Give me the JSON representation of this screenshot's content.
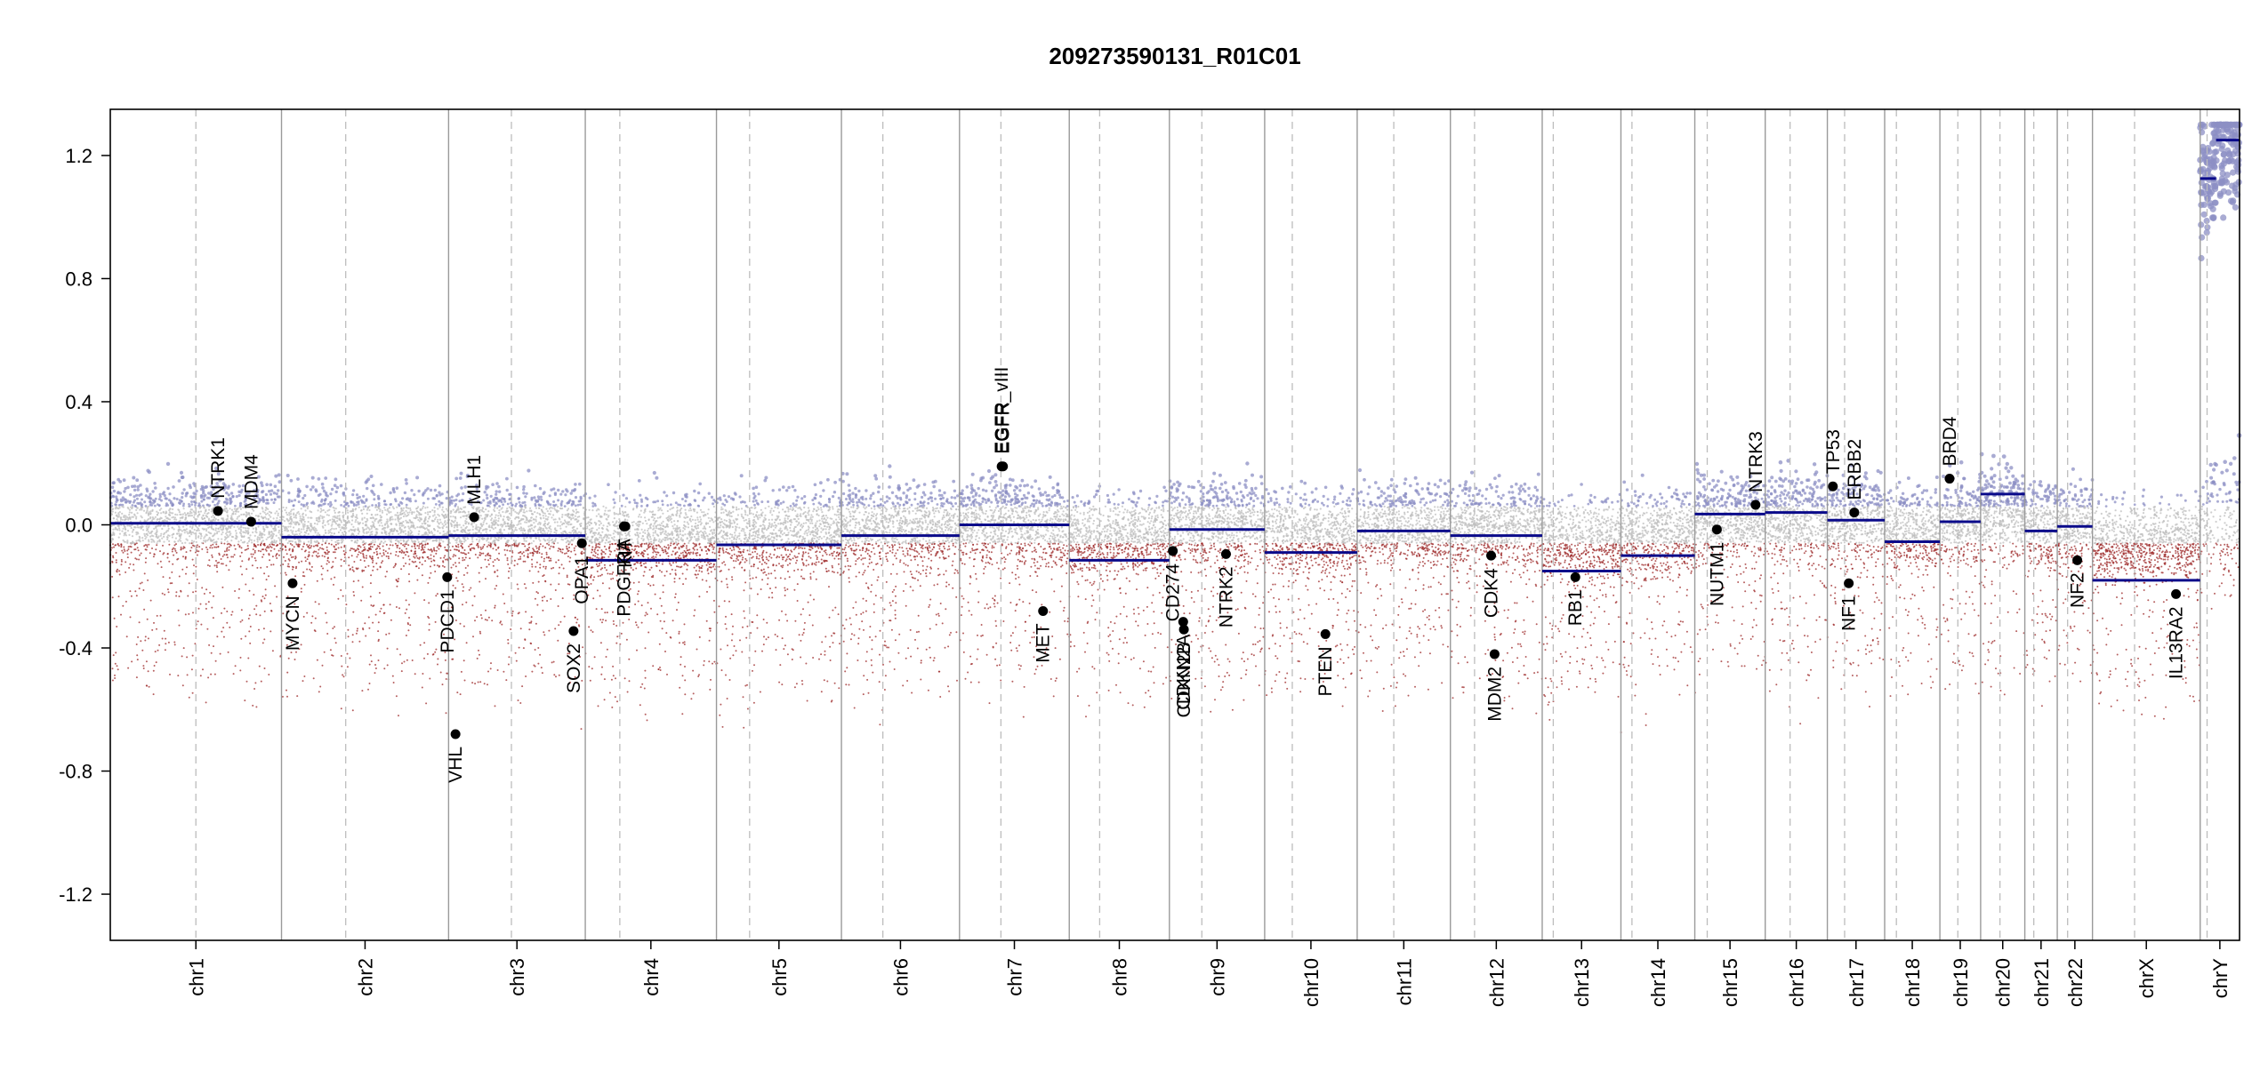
{
  "chart_data": {
    "type": "scatter",
    "title": "209273590131_R01C01",
    "xlabel": "",
    "ylabel": "",
    "ylim": [
      -1.35,
      1.35
    ],
    "yticks": [
      "1.2",
      "0.8",
      "0.4",
      "0.0",
      "-0.4",
      "-0.8",
      "-1.2"
    ],
    "ytick_values": [
      1.2,
      0.8,
      0.4,
      0.0,
      -0.4,
      -0.8,
      -1.2
    ],
    "grid": false,
    "colors": {
      "gain": "#8c8fc4",
      "loss": "#9e2a2a",
      "neutral": "#bdbdbd",
      "segment": "#0a0a8a",
      "chrom_border": "#9a9a9a",
      "centromere": "#bdbdbd",
      "gene_point": "#000000"
    },
    "chromosomes": [
      {
        "name": "chr1",
        "start": 0,
        "end": 248,
        "centromere": 124
      },
      {
        "name": "chr2",
        "start": 248,
        "end": 490,
        "centromere": 341
      },
      {
        "name": "chr3",
        "start": 490,
        "end": 688,
        "centromere": 581
      },
      {
        "name": "chr4",
        "start": 688,
        "end": 878,
        "centromere": 738
      },
      {
        "name": "chr5",
        "start": 878,
        "end": 1059,
        "centromere": 926
      },
      {
        "name": "chr6",
        "start": 1059,
        "end": 1230,
        "centromere": 1119
      },
      {
        "name": "chr7",
        "start": 1230,
        "end": 1389,
        "centromere": 1290
      },
      {
        "name": "chr8",
        "start": 1389,
        "end": 1534,
        "centromere": 1433
      },
      {
        "name": "chr9",
        "start": 1534,
        "end": 1672,
        "centromere": 1581
      },
      {
        "name": "chr10",
        "start": 1672,
        "end": 1806,
        "centromere": 1712
      },
      {
        "name": "chr11",
        "start": 1806,
        "end": 1941,
        "centromere": 1859
      },
      {
        "name": "chr12",
        "start": 1941,
        "end": 2074,
        "centromere": 1976
      },
      {
        "name": "chr13",
        "start": 2074,
        "end": 2188,
        "centromere": 2090
      },
      {
        "name": "chr14",
        "start": 2188,
        "end": 2295,
        "centromere": 2204
      },
      {
        "name": "chr15",
        "start": 2295,
        "end": 2397,
        "centromere": 2313
      },
      {
        "name": "chr16",
        "start": 2397,
        "end": 2487,
        "centromere": 2433
      },
      {
        "name": "chr17",
        "start": 2487,
        "end": 2570,
        "centromere": 2512
      },
      {
        "name": "chr18",
        "start": 2570,
        "end": 2650,
        "centromere": 2587
      },
      {
        "name": "chr19",
        "start": 2650,
        "end": 2709,
        "centromere": 2676
      },
      {
        "name": "chr20",
        "start": 2709,
        "end": 2773,
        "centromere": 2737
      },
      {
        "name": "chr21",
        "start": 2773,
        "end": 2820,
        "centromere": 2786
      },
      {
        "name": "chr22",
        "start": 2820,
        "end": 2871,
        "centromere": 2835
      },
      {
        "name": "chrX",
        "start": 2871,
        "end": 3027,
        "centromere": 2932
      },
      {
        "name": "chrY",
        "start": 3027,
        "end": 3084,
        "centromere": 3037
      }
    ],
    "segments": [
      {
        "x0": 0,
        "x1": 248,
        "y": 0.005
      },
      {
        "x0": 248,
        "x1": 490,
        "y": -0.04
      },
      {
        "x0": 490,
        "x1": 688,
        "y": -0.035
      },
      {
        "x0": 688,
        "x1": 878,
        "y": -0.115
      },
      {
        "x0": 878,
        "x1": 1059,
        "y": -0.065
      },
      {
        "x0": 1059,
        "x1": 1230,
        "y": -0.035
      },
      {
        "x0": 1230,
        "x1": 1389,
        "y": 0.0
      },
      {
        "x0": 1389,
        "x1": 1534,
        "y": -0.115
      },
      {
        "x0": 1534,
        "x1": 1672,
        "y": -0.015
      },
      {
        "x0": 1672,
        "x1": 1806,
        "y": -0.09
      },
      {
        "x0": 1806,
        "x1": 1941,
        "y": -0.02
      },
      {
        "x0": 1941,
        "x1": 2074,
        "y": -0.035
      },
      {
        "x0": 2074,
        "x1": 2188,
        "y": -0.15
      },
      {
        "x0": 2188,
        "x1": 2295,
        "y": -0.1
      },
      {
        "x0": 2295,
        "x1": 2397,
        "y": 0.035
      },
      {
        "x0": 2397,
        "x1": 2487,
        "y": 0.04
      },
      {
        "x0": 2487,
        "x1": 2570,
        "y": 0.015
      },
      {
        "x0": 2570,
        "x1": 2650,
        "y": -0.055
      },
      {
        "x0": 2650,
        "x1": 2709,
        "y": 0.01
      },
      {
        "x0": 2709,
        "x1": 2773,
        "y": 0.1
      },
      {
        "x0": 2773,
        "x1": 2820,
        "y": -0.02
      },
      {
        "x0": 2820,
        "x1": 2871,
        "y": -0.005
      },
      {
        "x0": 2871,
        "x1": 3027,
        "y": -0.18
      },
      {
        "x0": 3027,
        "x1": 3050,
        "y": 1.125
      },
      {
        "x0": 3050,
        "x1": 3084,
        "y": 1.25
      }
    ],
    "genes": [
      {
        "name": "NTRK1",
        "x": 156,
        "y": 0.045
      },
      {
        "name": "MDM4",
        "x": 204,
        "y": 0.01
      },
      {
        "name": "MYCN",
        "x": 264,
        "y": -0.19
      },
      {
        "name": "PDCD1",
        "x": 488,
        "y": -0.17
      },
      {
        "name": "VHL",
        "x": 500,
        "y": -0.68
      },
      {
        "name": "MLH1",
        "x": 527,
        "y": 0.025
      },
      {
        "name": "SOX2",
        "x": 671,
        "y": -0.345
      },
      {
        "name": "OPA1",
        "x": 683,
        "y": -0.06
      },
      {
        "name": "PDGFRA",
        "x": 744,
        "y": -0.005
      },
      {
        "name": "KIT",
        "x": 746,
        "y": -0.005
      },
      {
        "name": "EGFR_vIII",
        "x": 1291,
        "y": 0.19
      },
      {
        "name": "EGFR",
        "x": 1293,
        "y": 0.19
      },
      {
        "name": "MET",
        "x": 1351,
        "y": -0.28
      },
      {
        "name": "CD274",
        "x": 1539,
        "y": -0.085
      },
      {
        "name": "CDKN2A",
        "x": 1554,
        "y": -0.315
      },
      {
        "name": "CDKN2B",
        "x": 1555,
        "y": -0.34
      },
      {
        "name": "NTRK2",
        "x": 1616,
        "y": -0.095
      },
      {
        "name": "PTEN",
        "x": 1760,
        "y": -0.355
      },
      {
        "name": "CDK4",
        "x": 2000,
        "y": -0.1
      },
      {
        "name": "MDM2",
        "x": 2005,
        "y": -0.42
      },
      {
        "name": "RB1",
        "x": 2122,
        "y": -0.17
      },
      {
        "name": "NUTM1",
        "x": 2327,
        "y": -0.015
      },
      {
        "name": "NTRK3",
        "x": 2383,
        "y": 0.065
      },
      {
        "name": "TP53",
        "x": 2495,
        "y": 0.125
      },
      {
        "name": "ERBB2",
        "x": 2526,
        "y": 0.04
      },
      {
        "name": "NF1",
        "x": 2518,
        "y": -0.19
      },
      {
        "name": "BRD4",
        "x": 2664,
        "y": 0.15
      },
      {
        "name": "NF2",
        "x": 2849,
        "y": -0.115
      },
      {
        "name": "IL13RA2",
        "x": 2992,
        "y": -0.225
      }
    ]
  }
}
